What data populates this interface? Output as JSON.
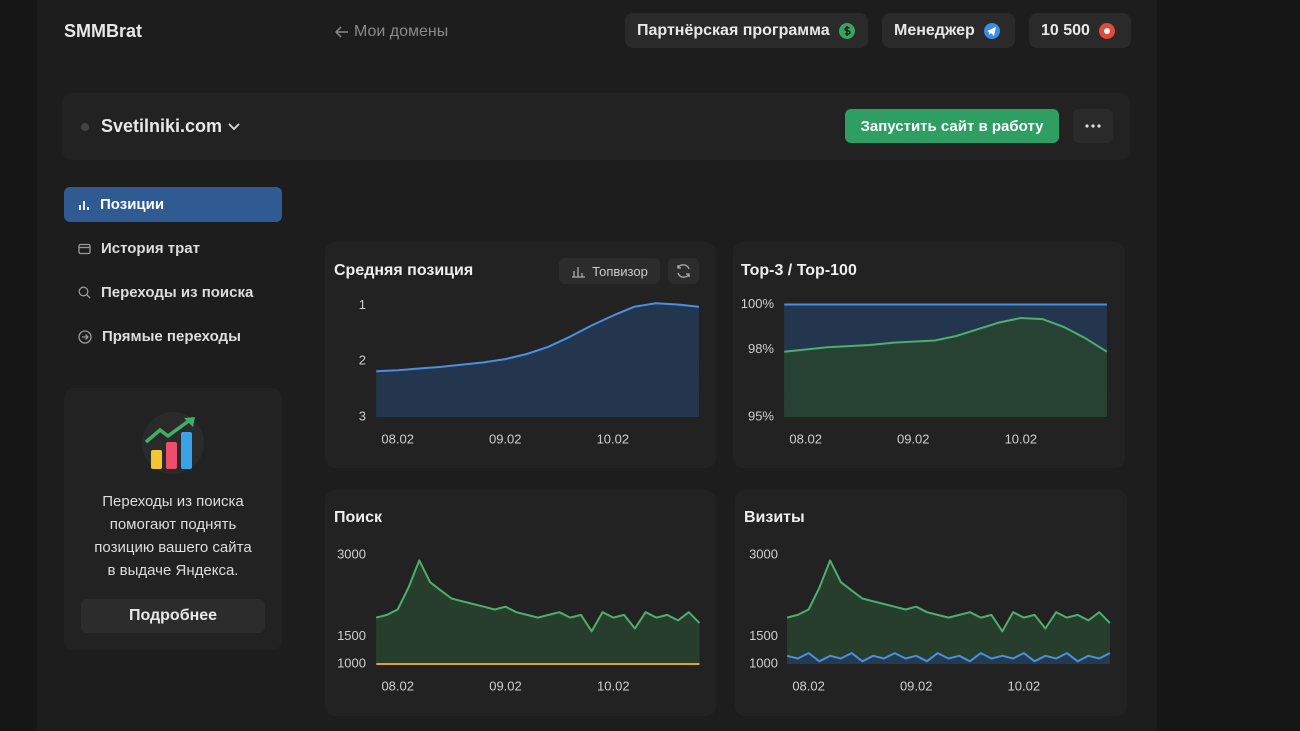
{
  "header": {
    "brand": "SMMBrat",
    "back": "Мои домены",
    "partner": "Партнёрская программа",
    "manager": "Менеджер",
    "balance": "10 500"
  },
  "site": {
    "domain": "Svetilniki.com",
    "launch": "Запустить сайт в работу"
  },
  "nav": [
    "Позиции",
    "История трат",
    "Переходы из поиска",
    "Прямые переходы"
  ],
  "promo": {
    "lines": [
      "Переходы из поиска",
      "помогают поднять",
      "позицию вашего сайта",
      "в выдаче Яндекса."
    ],
    "button": "Подробнее"
  },
  "topvisor": "Топвизор",
  "chart_data": [
    {
      "type": "area",
      "title": "Средняя позиция",
      "x": [
        7.8,
        8.0,
        8.2,
        8.4,
        8.6,
        8.8,
        9.0,
        9.2,
        9.4,
        9.6,
        9.8,
        10.0,
        10.2,
        10.4,
        10.6,
        10.8
      ],
      "series": [
        {
          "color": "#4a8fe0",
          "fill": "#253a55",
          "values": [
            2.18,
            2.16,
            2.13,
            2.1,
            2.06,
            2.02,
            1.96,
            1.87,
            1.74,
            1.56,
            1.36,
            1.18,
            1.02,
            0.96,
            0.98,
            1.02
          ]
        }
      ],
      "xlim": [
        7.78,
        10.81
      ],
      "xticks": [
        {
          "value": 8,
          "label": "08.02"
        },
        {
          "value": 9,
          "label": "09.02"
        },
        {
          "value": 10,
          "label": "10.02"
        }
      ],
      "ylim": [
        3,
        0.9
      ],
      "yticks": [
        1,
        2,
        3
      ]
    },
    {
      "type": "area",
      "title": "Top-3 / Top-100",
      "x": [
        7.8,
        8.0,
        8.2,
        8.4,
        8.6,
        8.8,
        9.0,
        9.2,
        9.4,
        9.6,
        9.8,
        10.0,
        10.2,
        10.4,
        10.6,
        10.8
      ],
      "series": [
        {
          "color": "#4a8fe0",
          "fill": "#253a55",
          "values": [
            100,
            100,
            100,
            100,
            100,
            100,
            100,
            100,
            100,
            100,
            100,
            100,
            100,
            100,
            100,
            100
          ]
        },
        {
          "color": "#4caf6e",
          "fill": "#28432f",
          "values": [
            97.9,
            98,
            98.1,
            98.15,
            98.2,
            98.3,
            98.35,
            98.4,
            98.6,
            98.9,
            99.2,
            99.4,
            99.35,
            99.0,
            98.5,
            97.9
          ]
        }
      ],
      "xlim": [
        7.78,
        10.81
      ],
      "xticks": [
        {
          "value": 8,
          "label": "08.02"
        },
        {
          "value": 9,
          "label": "09.02"
        },
        {
          "value": 10,
          "label": "10.02"
        }
      ],
      "ylim": [
        95,
        100.2
      ],
      "yticks": [
        {
          "value": 100,
          "label": "100%"
        },
        {
          "value": 98,
          "label": "98%"
        },
        {
          "value": 95,
          "label": "95%"
        }
      ]
    },
    {
      "type": "area",
      "title": "Поиск",
      "x": [
        7.8,
        7.9,
        8.0,
        8.1,
        8.2,
        8.3,
        8.4,
        8.5,
        8.6,
        8.7,
        8.8,
        8.9,
        9.0,
        9.1,
        9.2,
        9.3,
        9.4,
        9.5,
        9.6,
        9.7,
        9.8,
        9.9,
        10.0,
        10.1,
        10.2,
        10.3,
        10.4,
        10.5,
        10.6,
        10.7,
        10.8
      ],
      "series": [
        {
          "color": "#4caf6e",
          "fill": "#28432f",
          "values": [
            1850,
            1900,
            2000,
            2400,
            2900,
            2500,
            2350,
            2200,
            2150,
            2100,
            2050,
            2000,
            2050,
            1950,
            1900,
            1850,
            1900,
            1950,
            1850,
            1900,
            1600,
            1950,
            1850,
            1900,
            1650,
            1950,
            1850,
            1900,
            1800,
            1950,
            1750
          ]
        },
        {
          "color": "#e0a030",
          "values": [
            1000,
            1000,
            1000,
            1000,
            1000,
            1000,
            1000,
            1000,
            1000,
            1000,
            1000,
            1000,
            1000,
            1000,
            1000,
            1000,
            1000,
            1000,
            1000,
            1000,
            1000,
            1000,
            1000,
            1000,
            1000,
            1000,
            1000,
            1000,
            1000,
            1000,
            1000
          ]
        }
      ],
      "xlim": [
        7.78,
        10.86
      ],
      "xticks": [
        {
          "value": 8,
          "label": "08.02"
        },
        {
          "value": 9,
          "label": "09.02"
        },
        {
          "value": 10,
          "label": "10.02"
        }
      ],
      "ylim": [
        1000,
        3200
      ],
      "yticks": [
        3000,
        1500,
        1000
      ]
    },
    {
      "type": "area",
      "title": "Визиты",
      "x": [
        7.8,
        7.9,
        8.0,
        8.1,
        8.2,
        8.3,
        8.4,
        8.5,
        8.6,
        8.7,
        8.8,
        8.9,
        9.0,
        9.1,
        9.2,
        9.3,
        9.4,
        9.5,
        9.6,
        9.7,
        9.8,
        9.9,
        10.0,
        10.1,
        10.2,
        10.3,
        10.4,
        10.5,
        10.6,
        10.7,
        10.8
      ],
      "series": [
        {
          "color": "#4caf6e",
          "fill": "#28432f",
          "values": [
            1850,
            1900,
            2000,
            2400,
            2900,
            2500,
            2350,
            2200,
            2150,
            2100,
            2050,
            2000,
            2050,
            1950,
            1900,
            1850,
            1900,
            1950,
            1850,
            1900,
            1600,
            1950,
            1850,
            1900,
            1650,
            1950,
            1850,
            1900,
            1800,
            1950,
            1750
          ]
        },
        {
          "color": "#4a8fe0",
          "fill": "#253a55",
          "values": [
            1150,
            1100,
            1200,
            1050,
            1150,
            1100,
            1200,
            1050,
            1150,
            1100,
            1200,
            1100,
            1150,
            1050,
            1200,
            1100,
            1150,
            1050,
            1200,
            1100,
            1150,
            1100,
            1200,
            1050,
            1150,
            1100,
            1200,
            1050,
            1150,
            1100,
            1200
          ]
        }
      ],
      "xlim": [
        7.79,
        10.81
      ],
      "xticks": [
        {
          "value": 8,
          "label": "08.02"
        },
        {
          "value": 9,
          "label": "09.02"
        },
        {
          "value": 10,
          "label": "10.02"
        }
      ],
      "ylim": [
        1000,
        3200
      ],
      "yticks": [
        3000,
        1500,
        1000
      ]
    }
  ]
}
